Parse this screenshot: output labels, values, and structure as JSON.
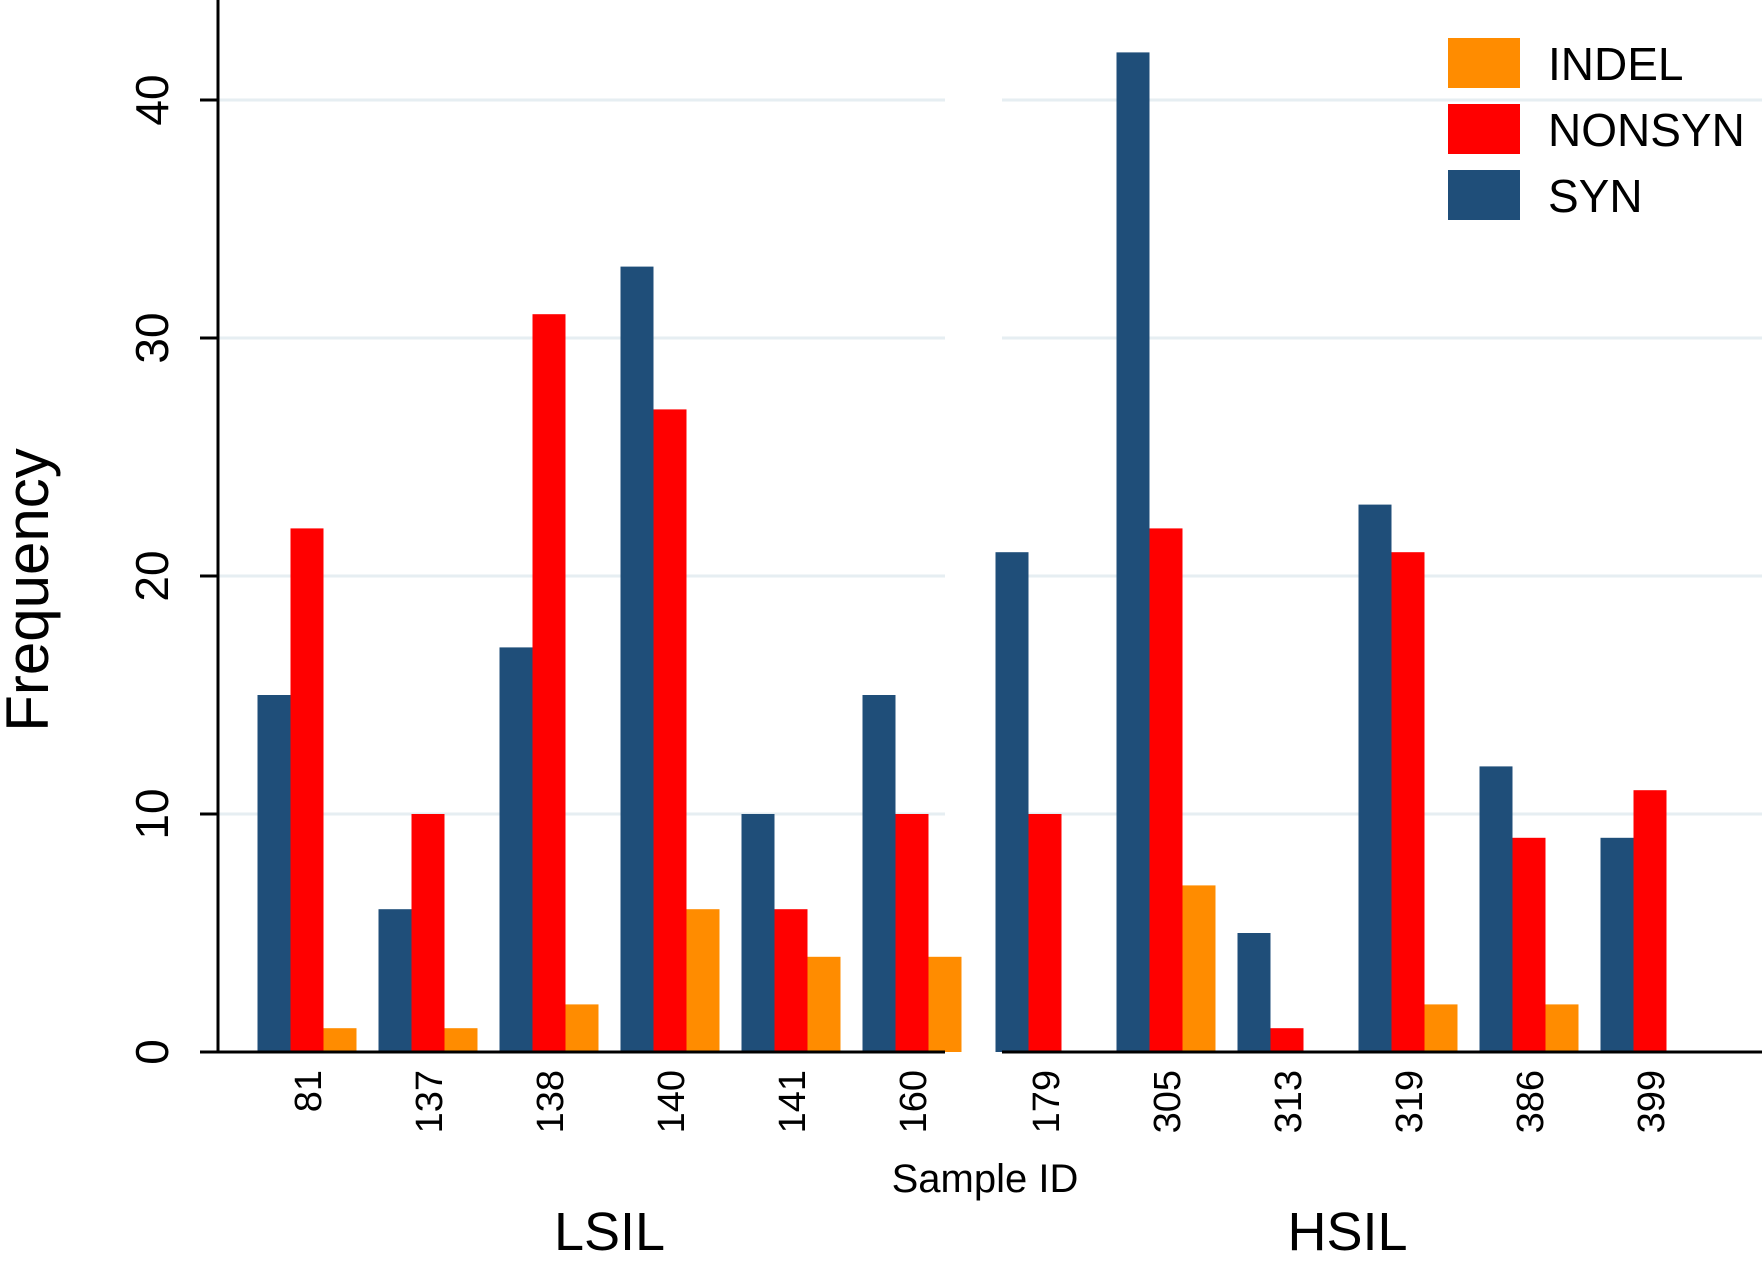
{
  "chart_data": {
    "type": "bar",
    "ylabel": "Frequency",
    "xlabel": "Sample ID",
    "ylim": [
      0,
      44
    ],
    "yticks": [
      0,
      10,
      20,
      30,
      40
    ],
    "grid": true,
    "legend_position": "top-right",
    "groups": [
      {
        "name": "LSIL",
        "categories": [
          "81",
          "137",
          "138",
          "140",
          "141",
          "160"
        ]
      },
      {
        "name": "HSIL",
        "categories": [
          "179",
          "305",
          "313",
          "319",
          "386",
          "399"
        ]
      }
    ],
    "categories": [
      "81",
      "137",
      "138",
      "140",
      "141",
      "160",
      "179",
      "305",
      "313",
      "319",
      "386",
      "399"
    ],
    "series": [
      {
        "name": "SYN",
        "color": "#1f4e79",
        "values": [
          15,
          6,
          17,
          33,
          10,
          15,
          21,
          42,
          5,
          23,
          12,
          9
        ]
      },
      {
        "name": "NONSYN",
        "color": "#ff0000",
        "values": [
          22,
          10,
          31,
          27,
          6,
          10,
          10,
          22,
          1,
          21,
          9,
          11
        ]
      },
      {
        "name": "INDEL",
        "color": "#ff8c00",
        "values": [
          1,
          1,
          2,
          6,
          4,
          4,
          0,
          7,
          0,
          2,
          2,
          0
        ]
      }
    ],
    "legend": [
      {
        "name": "INDEL",
        "color": "#ff8c00"
      },
      {
        "name": "NONSYN",
        "color": "#ff0000"
      },
      {
        "name": "SYN",
        "color": "#1f4e79"
      }
    ]
  }
}
